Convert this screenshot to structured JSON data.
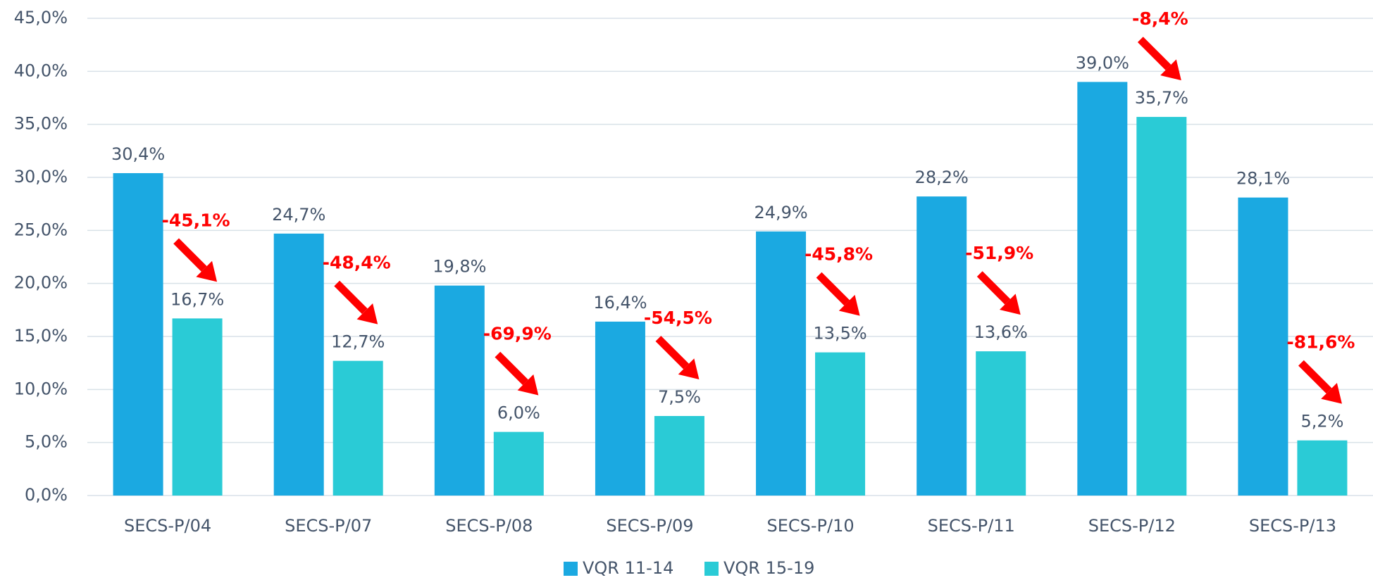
{
  "chart_data": {
    "type": "bar",
    "categories": [
      "SECS-P/04",
      "SECS-P/07",
      "SECS-P/08",
      "SECS-P/09",
      "SECS-P/10",
      "SECS-P/11",
      "SECS-P/12",
      "SECS-P/13"
    ],
    "series": [
      {
        "name": "VQR 11-14",
        "color": "#1ba9e1",
        "values": [
          30.4,
          24.7,
          19.8,
          16.4,
          24.9,
          28.2,
          39.0,
          28.1
        ],
        "value_labels": [
          "30,4%",
          "24,7%",
          "19,8%",
          "16,4%",
          "24,9%",
          "28,2%",
          "39,0%",
          "28,1%"
        ]
      },
      {
        "name": "VQR 15-19",
        "color": "#2acbd6",
        "values": [
          16.7,
          12.7,
          6.0,
          7.5,
          13.5,
          13.6,
          35.7,
          5.2
        ],
        "value_labels": [
          "16,7%",
          "12,7%",
          "6,0%",
          "7,5%",
          "13,5%",
          "13,6%",
          "35,7%",
          "5,2%"
        ]
      }
    ],
    "annotations": [
      "-45,1%",
      "-48,4%",
      "-69,9%",
      "-54,5%",
      "-45,8%",
      "-51,9%",
      "-8,4%",
      "-81,6%"
    ],
    "annotation_color": "#ff0000",
    "ylim": [
      0,
      45
    ],
    "yticks": [
      {
        "value": 0,
        "label": "0,0%"
      },
      {
        "value": 5,
        "label": "5,0%"
      },
      {
        "value": 10,
        "label": "10,0%"
      },
      {
        "value": 15,
        "label": "15,0%"
      },
      {
        "value": 20,
        "label": "20,0%"
      },
      {
        "value": 25,
        "label": "25,0%"
      },
      {
        "value": 30,
        "label": "30,0%"
      },
      {
        "value": 35,
        "label": "35,0%"
      },
      {
        "value": 40,
        "label": "40,0%"
      },
      {
        "value": 45,
        "label": "45,0%"
      }
    ],
    "grid": true,
    "legend": "bottom"
  }
}
